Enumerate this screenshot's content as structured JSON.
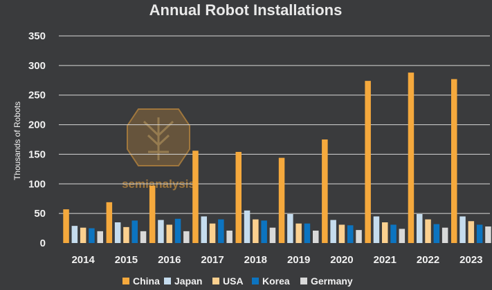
{
  "chart_data": {
    "type": "bar",
    "title": "Annual Robot Installations",
    "xlabel": "",
    "ylabel": "Thousands of Robots",
    "ylim": [
      0,
      350
    ],
    "yticks": [
      0,
      50,
      100,
      150,
      200,
      250,
      300,
      350
    ],
    "grid": true,
    "legend_position": "bottom",
    "categories": [
      "2014",
      "2015",
      "2016",
      "2017",
      "2018",
      "2019",
      "2020",
      "2021",
      "2022",
      "2023"
    ],
    "series": [
      {
        "name": "China",
        "color": "#f5a93d",
        "values": [
          57,
          69,
          97,
          156,
          154,
          144,
          175,
          274,
          288,
          277
        ]
      },
      {
        "name": "Japan",
        "color": "#c5dcee",
        "values": [
          29,
          35,
          39,
          45,
          55,
          49,
          39,
          45,
          49,
          45
        ]
      },
      {
        "name": "USA",
        "color": "#fbd08f",
        "values": [
          26,
          27,
          31,
          33,
          40,
          33,
          31,
          35,
          40,
          37
        ]
      },
      {
        "name": "Korea",
        "color": "#0c74c0",
        "values": [
          25,
          38,
          41,
          40,
          38,
          33,
          30,
          31,
          32,
          31
        ]
      },
      {
        "name": "Germany",
        "color": "#d9d9d9",
        "values": [
          20,
          20,
          20,
          21,
          26,
          21,
          22,
          24,
          26,
          28
        ]
      }
    ]
  },
  "watermark": {
    "text": "semianalysis",
    "color": "#f5a93d"
  }
}
